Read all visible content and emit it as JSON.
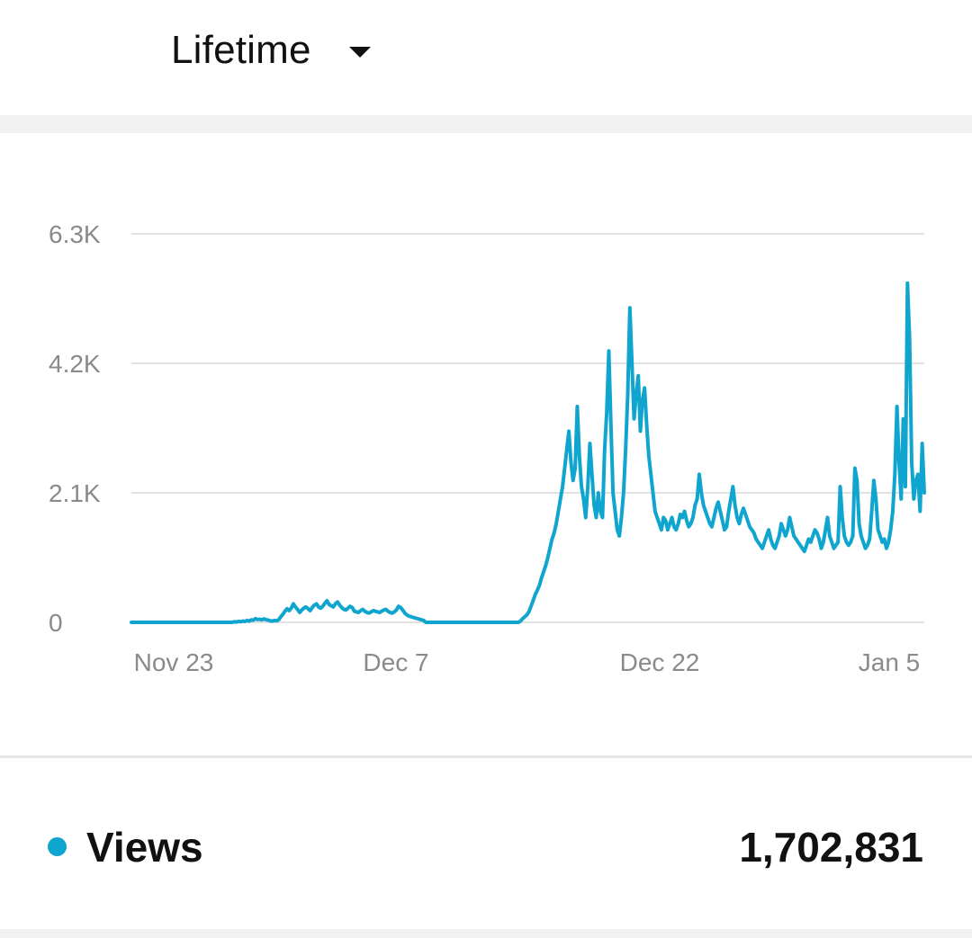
{
  "header": {
    "period_label": "Lifetime",
    "dropdown_icon": "caret-down-icon"
  },
  "metric": {
    "label": "Views",
    "value": "1,702,831",
    "dot_color": "#0fa5cf"
  },
  "colors": {
    "line": "#0fa5cf",
    "grid": "#e2e2e2",
    "tick_text": "#8a8a8a"
  },
  "chart_data": {
    "type": "line",
    "title": "",
    "xlabel": "",
    "ylabel": "",
    "x_start_label": "Nov 23",
    "x_end_label": "Jan 5",
    "x_ticks": [
      "Nov 23",
      "Dec 7",
      "Dec 22",
      "Jan 5"
    ],
    "y_ticks": [
      "0",
      "2.1K",
      "4.2K",
      "6.3K"
    ],
    "ylim": [
      0,
      6300
    ],
    "grid": true,
    "series": [
      {
        "name": "Views",
        "values": [
          0,
          0,
          0,
          0,
          0,
          0,
          0,
          0,
          0,
          0,
          0,
          0,
          0,
          0,
          0,
          0,
          0,
          0,
          0,
          0,
          0,
          0,
          0,
          0,
          0,
          0,
          0,
          0,
          0,
          0,
          0,
          0,
          0,
          0,
          0,
          0,
          0,
          0,
          0,
          0,
          0,
          0,
          0,
          0,
          0,
          0,
          0,
          0,
          0,
          10,
          5,
          15,
          10,
          20,
          15,
          30,
          20,
          40,
          35,
          60,
          45,
          50,
          40,
          55,
          45,
          35,
          25,
          20,
          30,
          25,
          40,
          90,
          130,
          180,
          220,
          190,
          230,
          300,
          250,
          210,
          160,
          200,
          230,
          250,
          220,
          190,
          240,
          280,
          300,
          250,
          230,
          260,
          310,
          350,
          290,
          270,
          250,
          300,
          330,
          280,
          240,
          210,
          200,
          230,
          260,
          240,
          180,
          170,
          160,
          190,
          210,
          180,
          160,
          150,
          170,
          190,
          180,
          170,
          160,
          180,
          200,
          210,
          180,
          160,
          150,
          170,
          200,
          260,
          240,
          200,
          150,
          120,
          100,
          90,
          80,
          70,
          60,
          50,
          40,
          30,
          0,
          0,
          0,
          0,
          0,
          0,
          0,
          0,
          0,
          0,
          0,
          0,
          0,
          0,
          0,
          0,
          0,
          0,
          0,
          0,
          0,
          0,
          0,
          0,
          0,
          0,
          0,
          0,
          0,
          0,
          0,
          0,
          0,
          0,
          0,
          0,
          0,
          0,
          0,
          0,
          0,
          0,
          0,
          0,
          0,
          20,
          60,
          90,
          120,
          170,
          260,
          350,
          450,
          520,
          600,
          720,
          820,
          920,
          1050,
          1200,
          1350,
          1450,
          1600,
          1800,
          2000,
          2200,
          2500,
          2800,
          3100,
          2600,
          2300,
          2500,
          3500,
          2700,
          2200,
          2000,
          1700,
          2200,
          2900,
          2400,
          1900,
          1700,
          2100,
          1800,
          1700,
          2800,
          3400,
          4400,
          3200,
          2100,
          1800,
          1500,
          1400,
          1700,
          2100,
          2800,
          3700,
          5100,
          4200,
          3300,
          3700,
          4000,
          3100,
          3600,
          3800,
          3200,
          2700,
          2400,
          2100,
          1800,
          1700,
          1600,
          1500,
          1700,
          1650,
          1500,
          1600,
          1700,
          1550,
          1500,
          1600,
          1750,
          1700,
          1800,
          1650,
          1550,
          1600,
          1700,
          1900,
          2000,
          2400,
          2100,
          1900,
          1800,
          1700,
          1600,
          1550,
          1700,
          1850,
          1950,
          1800,
          1650,
          1500,
          1550,
          1800,
          2000,
          2200,
          1900,
          1700,
          1600,
          1750,
          1850,
          1750,
          1650,
          1550,
          1500,
          1450,
          1350,
          1300,
          1250,
          1200,
          1300,
          1400,
          1500,
          1350,
          1250,
          1200,
          1300,
          1400,
          1600,
          1500,
          1400,
          1500,
          1700,
          1550,
          1400,
          1350,
          1300,
          1250,
          1200,
          1150,
          1250,
          1350,
          1300,
          1400,
          1500,
          1450,
          1350,
          1200,
          1300,
          1500,
          1700,
          1400,
          1300,
          1200,
          1250,
          1300,
          2200,
          1700,
          1400,
          1300,
          1250,
          1300,
          1400,
          2500,
          2300,
          1600,
          1400,
          1300,
          1200,
          1250,
          1350,
          1800,
          2300,
          2000,
          1500,
          1400,
          1300,
          1350,
          1200,
          1300,
          1500,
          1800,
          2400,
          3500,
          2600,
          2000,
          3300,
          2200,
          5500,
          4600,
          2600,
          2000,
          2300,
          2400,
          1800,
          2900,
          2100
        ]
      }
    ]
  }
}
